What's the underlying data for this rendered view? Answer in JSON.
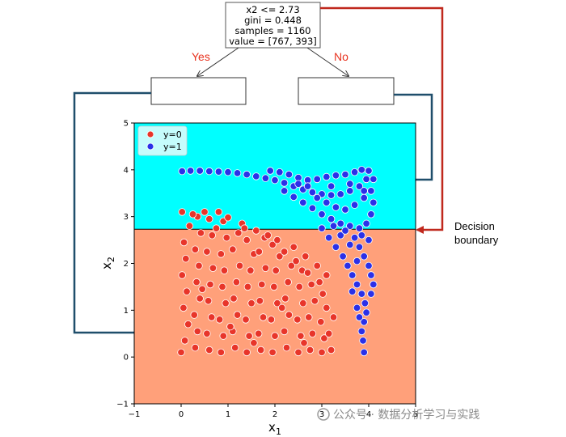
{
  "tree": {
    "root": {
      "lines": [
        "x2 <= 2.73",
        "gini = 0.448",
        "samples = 1160",
        "value = [767, 393]"
      ]
    },
    "yes_label": "Yes",
    "no_label": "No",
    "colors": {
      "yes_no": "#e8321e",
      "arrow_red": "#c0281d",
      "arrow_blue": "#1f4e6b"
    }
  },
  "annotation": {
    "lines": [
      "Decision",
      "boundary"
    ]
  },
  "watermark": {
    "text": "公众号 · 数据分析学习与实践"
  },
  "chart_data": {
    "type": "scatter",
    "xlim": [
      -1,
      5
    ],
    "ylim": [
      -1,
      5
    ],
    "x_ticks": [
      "−1",
      "0",
      "1",
      "2",
      "3",
      "4",
      "5"
    ],
    "y_ticks": [
      "−1",
      "0",
      "1",
      "2",
      "3",
      "4",
      "5"
    ],
    "xlabel": "x",
    "xlabel_sub": "1",
    "ylabel": "x",
    "ylabel_sub": "2",
    "grid": false,
    "legend_position": "top-left",
    "split_threshold": 2.73,
    "regions": [
      {
        "name": "upper",
        "y_range": [
          2.73,
          5
        ],
        "color": "#00ffff"
      },
      {
        "name": "lower",
        "y_range": [
          -1,
          2.73
        ],
        "color": "#ffa07a"
      }
    ],
    "series": [
      {
        "name": "y=0",
        "color": "#e8352a",
        "description_shape": "dense cluster filling the lower-left quadrant",
        "points": [
          [
            0.0,
            0.1
          ],
          [
            0.08,
            0.35
          ],
          [
            0.15,
            0.7
          ],
          [
            0.05,
            1.05
          ],
          [
            0.12,
            1.4
          ],
          [
            0.02,
            1.75
          ],
          [
            0.1,
            2.1
          ],
          [
            0.06,
            2.45
          ],
          [
            0.18,
            2.8
          ],
          [
            0.02,
            3.1
          ],
          [
            0.3,
            0.2
          ],
          [
            0.35,
            0.55
          ],
          [
            0.28,
            0.9
          ],
          [
            0.4,
            1.25
          ],
          [
            0.33,
            1.6
          ],
          [
            0.38,
            1.95
          ],
          [
            0.3,
            2.3
          ],
          [
            0.42,
            2.65
          ],
          [
            0.35,
            3.0
          ],
          [
            0.5,
            3.1
          ],
          [
            0.6,
            0.15
          ],
          [
            0.55,
            0.5
          ],
          [
            0.65,
            0.85
          ],
          [
            0.58,
            1.2
          ],
          [
            0.62,
            1.55
          ],
          [
            0.68,
            1.9
          ],
          [
            0.55,
            2.25
          ],
          [
            0.66,
            2.6
          ],
          [
            0.6,
            2.95
          ],
          [
            0.8,
            3.1
          ],
          [
            0.85,
            0.1
          ],
          [
            0.9,
            0.45
          ],
          [
            0.82,
            0.8
          ],
          [
            0.95,
            1.15
          ],
          [
            0.88,
            1.5
          ],
          [
            0.92,
            1.85
          ],
          [
            0.85,
            2.2
          ],
          [
            0.97,
            2.55
          ],
          [
            0.9,
            2.9
          ],
          [
            1.0,
            2.98
          ],
          [
            1.15,
            0.2
          ],
          [
            1.1,
            0.55
          ],
          [
            1.2,
            0.9
          ],
          [
            1.12,
            1.25
          ],
          [
            1.18,
            1.6
          ],
          [
            1.25,
            1.95
          ],
          [
            1.1,
            2.3
          ],
          [
            1.22,
            2.65
          ],
          [
            1.3,
            2.85
          ],
          [
            1.4,
            0.1
          ],
          [
            1.45,
            0.45
          ],
          [
            1.38,
            0.8
          ],
          [
            1.5,
            1.15
          ],
          [
            1.42,
            1.5
          ],
          [
            1.48,
            1.85
          ],
          [
            1.55,
            2.2
          ],
          [
            1.4,
            2.5
          ],
          [
            1.7,
            0.15
          ],
          [
            1.65,
            0.5
          ],
          [
            1.75,
            0.85
          ],
          [
            1.68,
            1.2
          ],
          [
            1.72,
            1.55
          ],
          [
            1.8,
            1.9
          ],
          [
            1.66,
            2.25
          ],
          [
            1.78,
            2.55
          ],
          [
            1.95,
            0.1
          ],
          [
            2.0,
            0.45
          ],
          [
            1.92,
            0.8
          ],
          [
            2.05,
            1.15
          ],
          [
            1.98,
            1.5
          ],
          [
            2.02,
            1.85
          ],
          [
            2.1,
            2.15
          ],
          [
            1.95,
            2.4
          ],
          [
            2.25,
            0.2
          ],
          [
            2.2,
            0.55
          ],
          [
            2.3,
            0.9
          ],
          [
            2.22,
            1.25
          ],
          [
            2.28,
            1.6
          ],
          [
            2.35,
            1.95
          ],
          [
            2.2,
            2.25
          ],
          [
            2.5,
            0.1
          ],
          [
            2.55,
            0.45
          ],
          [
            2.48,
            0.8
          ],
          [
            2.6,
            1.15
          ],
          [
            2.52,
            1.5
          ],
          [
            2.58,
            1.85
          ],
          [
            2.45,
            2.05
          ],
          [
            2.75,
            0.15
          ],
          [
            2.8,
            0.5
          ],
          [
            2.72,
            0.85
          ],
          [
            2.85,
            1.2
          ],
          [
            2.78,
            1.55
          ],
          [
            2.7,
            1.8
          ],
          [
            3.0,
            0.1
          ],
          [
            3.05,
            0.4
          ],
          [
            2.98,
            0.75
          ],
          [
            3.1,
            1.05
          ],
          [
            3.02,
            1.35
          ],
          [
            2.95,
            1.6
          ],
          [
            3.2,
            0.15
          ],
          [
            3.15,
            0.5
          ],
          [
            3.25,
            0.85
          ],
          [
            1.6,
            2.7
          ],
          [
            2.05,
            2.5
          ],
          [
            2.4,
            2.35
          ],
          [
            2.65,
            2.15
          ],
          [
            2.9,
            1.95
          ],
          [
            3.1,
            1.75
          ],
          [
            0.25,
            3.05
          ],
          [
            1.35,
            2.75
          ],
          [
            1.85,
            2.6
          ],
          [
            0.45,
            1.45
          ],
          [
            1.05,
            0.65
          ],
          [
            2.15,
            1.05
          ],
          [
            1.55,
            0.3
          ],
          [
            0.75,
            2.75
          ],
          [
            2.62,
            0.3
          ]
        ]
      },
      {
        "name": "y=1",
        "color": "#2b30e8",
        "description_shape": "curved band along the top edge then descending around x1≈3.5–4",
        "points": [
          [
            0.02,
            3.97
          ],
          [
            0.2,
            3.98
          ],
          [
            0.4,
            3.98
          ],
          [
            0.6,
            3.97
          ],
          [
            0.8,
            3.96
          ],
          [
            1.0,
            3.95
          ],
          [
            1.2,
            3.93
          ],
          [
            1.4,
            3.9
          ],
          [
            1.6,
            3.86
          ],
          [
            1.8,
            3.82
          ],
          [
            2.0,
            3.78
          ],
          [
            2.2,
            3.72
          ],
          [
            2.4,
            3.65
          ],
          [
            2.6,
            3.58
          ],
          [
            2.8,
            3.52
          ],
          [
            3.0,
            3.48
          ],
          [
            3.2,
            3.46
          ],
          [
            3.4,
            3.48
          ],
          [
            3.6,
            3.55
          ],
          [
            3.8,
            3.65
          ],
          [
            3.95,
            3.8
          ],
          [
            4.0,
            3.98
          ],
          [
            1.9,
            3.98
          ],
          [
            2.1,
            3.95
          ],
          [
            2.3,
            3.9
          ],
          [
            2.5,
            3.83
          ],
          [
            2.7,
            3.78
          ],
          [
            2.9,
            3.8
          ],
          [
            3.1,
            3.85
          ],
          [
            3.3,
            3.88
          ],
          [
            3.5,
            3.9
          ],
          [
            3.7,
            3.95
          ],
          [
            3.85,
            4.0
          ],
          [
            2.2,
            3.55
          ],
          [
            2.4,
            3.42
          ],
          [
            2.6,
            3.3
          ],
          [
            2.8,
            3.18
          ],
          [
            3.0,
            3.05
          ],
          [
            3.2,
            2.95
          ],
          [
            3.4,
            2.85
          ],
          [
            3.6,
            2.8
          ],
          [
            3.8,
            2.75
          ],
          [
            3.95,
            2.85
          ],
          [
            4.05,
            3.05
          ],
          [
            4.1,
            3.3
          ],
          [
            4.05,
            3.55
          ],
          [
            3.9,
            3.4
          ],
          [
            3.7,
            3.25
          ],
          [
            3.5,
            3.15
          ],
          [
            3.3,
            3.2
          ],
          [
            3.1,
            3.3
          ],
          [
            2.9,
            3.4
          ],
          [
            3.0,
            2.75
          ],
          [
            3.15,
            2.55
          ],
          [
            3.3,
            2.35
          ],
          [
            3.45,
            2.15
          ],
          [
            3.55,
            1.95
          ],
          [
            3.65,
            1.75
          ],
          [
            3.75,
            1.55
          ],
          [
            3.85,
            1.35
          ],
          [
            3.92,
            1.15
          ],
          [
            3.95,
            0.95
          ],
          [
            3.9,
            0.75
          ],
          [
            3.85,
            0.55
          ],
          [
            3.88,
            0.35
          ],
          [
            3.9,
            0.1
          ],
          [
            3.7,
            2.55
          ],
          [
            3.8,
            2.35
          ],
          [
            3.9,
            2.15
          ],
          [
            4.0,
            1.95
          ],
          [
            4.05,
            1.75
          ],
          [
            4.1,
            1.55
          ],
          [
            4.05,
            1.35
          ],
          [
            3.6,
            2.4
          ],
          [
            3.4,
            2.6
          ],
          [
            3.5,
            2.7
          ],
          [
            3.25,
            2.8
          ],
          [
            3.85,
            2.6
          ],
          [
            4.0,
            2.5
          ],
          [
            3.75,
            2.05
          ],
          [
            3.65,
            1.4
          ],
          [
            3.75,
            1.05
          ],
          [
            3.8,
            0.85
          ],
          [
            2.5,
            3.7
          ],
          [
            2.7,
            3.65
          ],
          [
            3.2,
            3.65
          ],
          [
            3.6,
            3.7
          ],
          [
            3.9,
            3.55
          ],
          [
            4.1,
            3.8
          ]
        ]
      }
    ]
  }
}
